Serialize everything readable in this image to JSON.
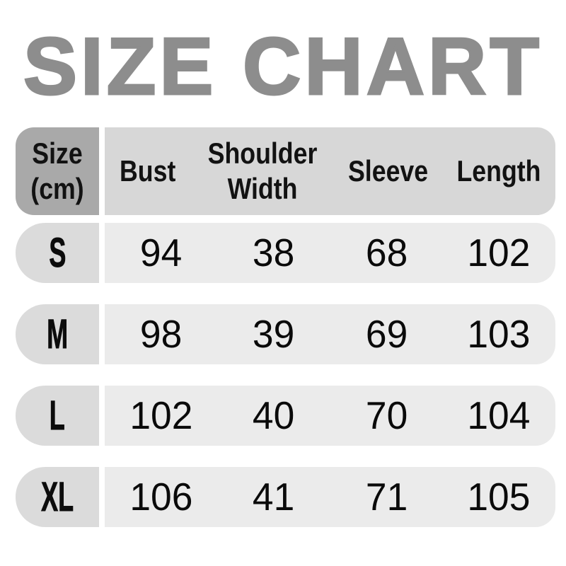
{
  "title": "SIZE CHART",
  "table": {
    "unit_header": "Size (cm)",
    "columns": [
      "Bust",
      "Shoulder Width",
      "Sleeve",
      "Length"
    ],
    "rows": [
      {
        "size": "S",
        "values": [
          "94",
          "38",
          "68",
          "102"
        ]
      },
      {
        "size": "M",
        "values": [
          "98",
          "39",
          "69",
          "103"
        ]
      },
      {
        "size": "L",
        "values": [
          "102",
          "40",
          "70",
          "104"
        ]
      },
      {
        "size": "XL",
        "values": [
          "106",
          "41",
          "71",
          "105"
        ]
      }
    ]
  },
  "colors": {
    "title_text": "#8D8D8D",
    "header_size_cell": "#A9A9A9",
    "header_band": "#D7D7D7",
    "row_size_cell": "#DBDBDB",
    "row_band": "#EBEBEB",
    "body_text": "#0C0C0C",
    "background": "#FFFFFF"
  },
  "chart_data": {
    "type": "table",
    "title": "SIZE CHART",
    "unit": "cm",
    "columns": [
      "Size (cm)",
      "Bust",
      "Shoulder Width",
      "Sleeve",
      "Length"
    ],
    "rows": [
      [
        "S",
        94,
        38,
        68,
        102
      ],
      [
        "M",
        98,
        39,
        69,
        103
      ],
      [
        "L",
        102,
        40,
        70,
        104
      ],
      [
        "XL",
        106,
        41,
        71,
        105
      ]
    ]
  }
}
